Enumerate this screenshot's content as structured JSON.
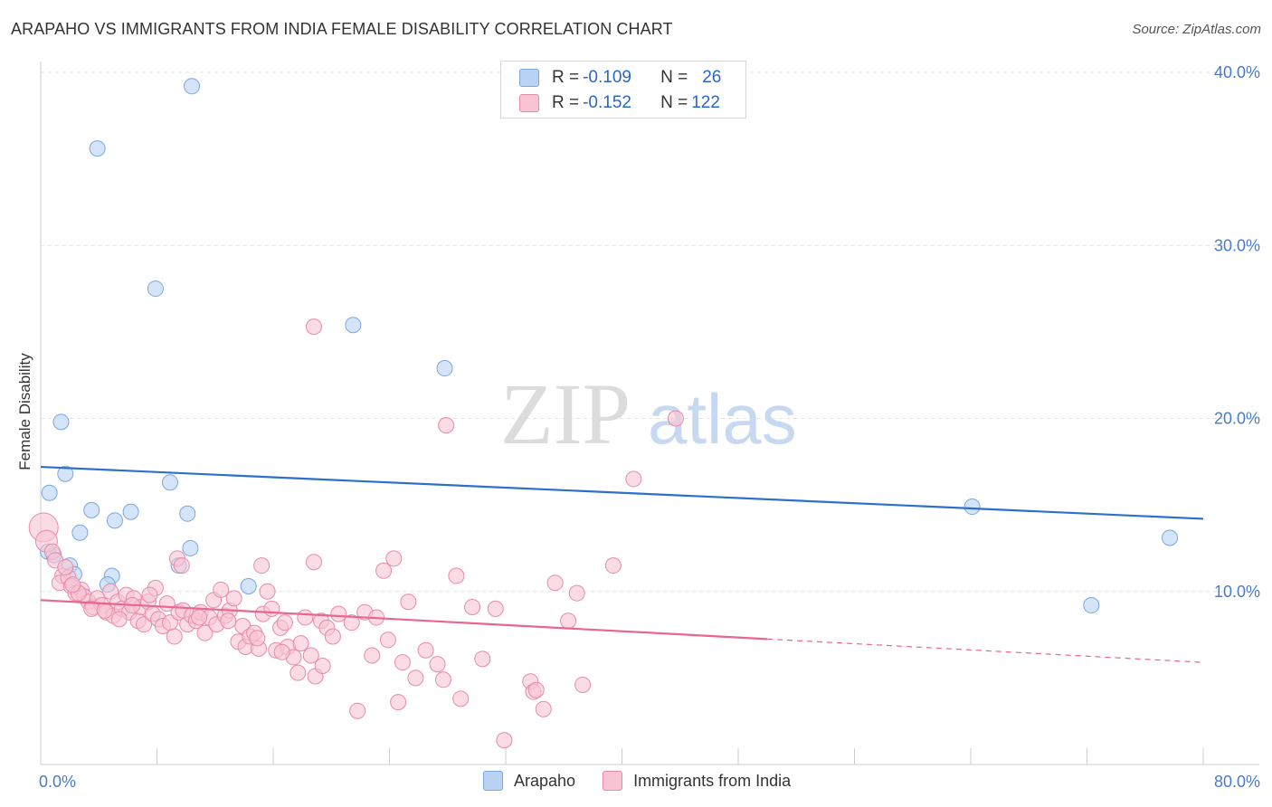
{
  "title": "ARAPAHO VS IMMIGRANTS FROM INDIA FEMALE DISABILITY CORRELATION CHART",
  "source": "Source: ZipAtlas.com",
  "watermark": {
    "zip": "ZIP",
    "atlas": "atlas"
  },
  "legend": {
    "rows": [
      {
        "r_label": "R = ",
        "r_value": "-0.109",
        "n_label": "N = ",
        "n_value": "26",
        "color": "#b9d3f5",
        "border": "#7aa6e0"
      },
      {
        "r_label": "R = ",
        "r_value": "-0.152",
        "n_label": "N = ",
        "n_value": "122",
        "color": "#f8c4d4",
        "border": "#e98aa8"
      }
    ]
  },
  "bottom_legend": [
    {
      "label": "Arapaho",
      "color": "#b9d3f5",
      "border": "#7aa6e0"
    },
    {
      "label": "Immigrants from India",
      "color": "#f8c4d4",
      "border": "#e98aa8"
    }
  ],
  "chart_data": {
    "type": "scatter",
    "title": "ARAPAHO VS IMMIGRANTS FROM INDIA FEMALE DISABILITY CORRELATION CHART",
    "xlabel": "",
    "ylabel": "Female Disability",
    "xlim": [
      0,
      80
    ],
    "ylim": [
      0,
      40
    ],
    "x_tick_labels": [
      "0.0%",
      "80.0%"
    ],
    "y_ticks": [
      10,
      20,
      30,
      40
    ],
    "y_tick_labels": [
      "10.0%",
      "20.0%",
      "30.0%",
      "40.0%"
    ],
    "series": [
      {
        "name": "Arapaho",
        "color": "#7aa6e0",
        "fill": "#b9d3f5",
        "trend_color": "#2d6fcc",
        "trend": {
          "x": [
            0,
            80
          ],
          "y": [
            17.2,
            14.2
          ],
          "solid_until": 80
        },
        "points": [
          [
            10.4,
            39.2
          ],
          [
            3.9,
            35.6
          ],
          [
            7.9,
            27.5
          ],
          [
            21.5,
            25.4
          ],
          [
            27.8,
            22.9
          ],
          [
            1.4,
            19.8
          ],
          [
            1.7,
            16.8
          ],
          [
            0.6,
            15.7
          ],
          [
            8.9,
            16.3
          ],
          [
            3.5,
            14.7
          ],
          [
            6.2,
            14.6
          ],
          [
            5.1,
            14.1
          ],
          [
            10.1,
            14.5
          ],
          [
            2.7,
            13.4
          ],
          [
            10.3,
            12.5
          ],
          [
            0.5,
            12.3
          ],
          [
            0.9,
            12.1
          ],
          [
            2.0,
            11.5
          ],
          [
            9.5,
            11.5
          ],
          [
            4.9,
            10.9
          ],
          [
            2.3,
            11.0
          ],
          [
            4.6,
            10.4
          ],
          [
            14.3,
            10.3
          ],
          [
            64.1,
            14.9
          ],
          [
            77.7,
            13.1
          ],
          [
            72.3,
            9.2
          ]
        ]
      },
      {
        "name": "Immigrants from India",
        "color": "#e98aa8",
        "fill": "#f8c4d4",
        "trend_color": "#e8668f",
        "trend": {
          "x": [
            0,
            80
          ],
          "y": [
            9.5,
            5.9
          ],
          "solid_until": 50
        },
        "points": [
          [
            0.2,
            13.7
          ],
          [
            0.4,
            12.9
          ],
          [
            0.8,
            12.3
          ],
          [
            1.0,
            11.8
          ],
          [
            1.5,
            10.9
          ],
          [
            1.3,
            10.5
          ],
          [
            1.9,
            10.8
          ],
          [
            2.1,
            10.3
          ],
          [
            2.4,
            9.9
          ],
          [
            2.8,
            10.1
          ],
          [
            3.0,
            9.7
          ],
          [
            3.3,
            9.4
          ],
          [
            3.6,
            9.1
          ],
          [
            3.9,
            9.6
          ],
          [
            4.2,
            9.2
          ],
          [
            4.5,
            8.8
          ],
          [
            4.8,
            10.0
          ],
          [
            5.0,
            8.6
          ],
          [
            5.3,
            9.4
          ],
          [
            5.6,
            9.0
          ],
          [
            5.9,
            9.8
          ],
          [
            6.1,
            8.8
          ],
          [
            6.4,
            9.6
          ],
          [
            6.7,
            8.3
          ],
          [
            6.9,
            9.1
          ],
          [
            7.1,
            8.1
          ],
          [
            7.4,
            9.4
          ],
          [
            7.7,
            8.7
          ],
          [
            7.9,
            10.2
          ],
          [
            8.1,
            8.4
          ],
          [
            8.4,
            8.0
          ],
          [
            8.7,
            9.3
          ],
          [
            8.9,
            8.2
          ],
          [
            9.2,
            7.4
          ],
          [
            9.5,
            8.8
          ],
          [
            9.8,
            8.9
          ],
          [
            10.1,
            8.1
          ],
          [
            10.4,
            8.6
          ],
          [
            10.7,
            8.3
          ],
          [
            11.0,
            8.8
          ],
          [
            11.3,
            7.6
          ],
          [
            11.6,
            8.5
          ],
          [
            11.9,
            9.5
          ],
          [
            12.1,
            8.1
          ],
          [
            12.4,
            10.1
          ],
          [
            12.7,
            8.6
          ],
          [
            13.0,
            8.9
          ],
          [
            13.3,
            9.6
          ],
          [
            13.6,
            7.1
          ],
          [
            13.9,
            8.0
          ],
          [
            14.1,
            6.8
          ],
          [
            14.4,
            7.4
          ],
          [
            14.7,
            7.6
          ],
          [
            15.0,
            6.7
          ],
          [
            15.3,
            8.7
          ],
          [
            15.6,
            10.0
          ],
          [
            15.9,
            9.0
          ],
          [
            16.2,
            6.6
          ],
          [
            16.5,
            7.9
          ],
          [
            16.8,
            8.2
          ],
          [
            17.0,
            6.8
          ],
          [
            17.4,
            6.2
          ],
          [
            17.7,
            5.3
          ],
          [
            17.9,
            7.0
          ],
          [
            18.2,
            8.5
          ],
          [
            18.6,
            6.3
          ],
          [
            18.9,
            5.1
          ],
          [
            19.3,
            8.3
          ],
          [
            19.7,
            7.9
          ],
          [
            20.1,
            7.4
          ],
          [
            20.5,
            8.7
          ],
          [
            21.4,
            8.2
          ],
          [
            22.3,
            8.8
          ],
          [
            22.8,
            6.3
          ],
          [
            23.6,
            11.2
          ],
          [
            23.9,
            7.2
          ],
          [
            24.3,
            11.9
          ],
          [
            24.6,
            3.6
          ],
          [
            24.9,
            5.9
          ],
          [
            25.3,
            9.4
          ],
          [
            25.8,
            5.0
          ],
          [
            27.3,
            5.8
          ],
          [
            27.7,
            4.9
          ],
          [
            28.6,
            10.9
          ],
          [
            28.9,
            3.8
          ],
          [
            29.7,
            9.1
          ],
          [
            30.4,
            6.1
          ],
          [
            31.3,
            9.0
          ],
          [
            31.9,
            1.4
          ],
          [
            33.7,
            4.8
          ],
          [
            33.9,
            4.2
          ],
          [
            34.1,
            4.3
          ],
          [
            34.6,
            3.2
          ],
          [
            35.4,
            10.5
          ],
          [
            36.3,
            8.3
          ],
          [
            36.9,
            9.9
          ],
          [
            37.3,
            4.6
          ],
          [
            39.4,
            11.5
          ],
          [
            40.8,
            16.5
          ],
          [
            43.7,
            20.0
          ],
          [
            27.9,
            19.6
          ],
          [
            18.8,
            25.3
          ],
          [
            6.3,
            9.2
          ],
          [
            5.4,
            8.4
          ],
          [
            3.5,
            9.0
          ],
          [
            2.6,
            9.9
          ],
          [
            2.2,
            10.4
          ],
          [
            1.7,
            11.4
          ],
          [
            4.4,
            8.9
          ],
          [
            9.4,
            11.9
          ],
          [
            9.7,
            11.5
          ],
          [
            15.2,
            11.5
          ],
          [
            18.8,
            11.7
          ],
          [
            21.8,
            3.1
          ],
          [
            7.5,
            9.8
          ],
          [
            10.9,
            8.5
          ],
          [
            12.9,
            8.3
          ],
          [
            14.9,
            7.3
          ],
          [
            16.6,
            6.5
          ],
          [
            19.4,
            5.7
          ],
          [
            23.1,
            8.5
          ],
          [
            26.5,
            6.6
          ]
        ]
      }
    ]
  }
}
